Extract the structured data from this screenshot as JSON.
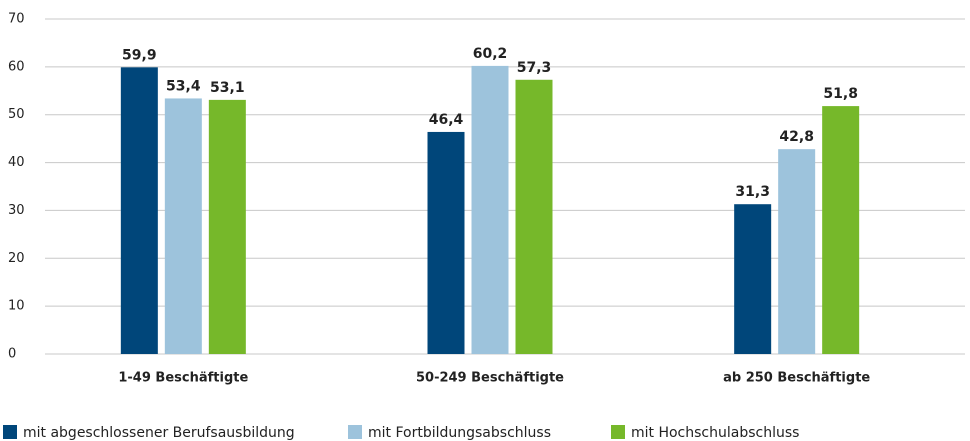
{
  "chart_data": {
    "type": "bar",
    "categories": [
      "1-49 Beschäftigte",
      "50-249 Beschäftigte",
      "ab 250 Beschäftigte"
    ],
    "series": [
      {
        "name": "mit abgeschlossener Berufsausbildung",
        "color": "#00467a",
        "values": [
          59.9,
          46.4,
          31.3
        ],
        "value_labels": [
          "59,9",
          "46,4",
          "31,3"
        ]
      },
      {
        "name": "mit Fortbildungsabschluss",
        "color": "#9dc3dc",
        "values": [
          53.4,
          60.2,
          42.8
        ],
        "value_labels": [
          "53,4",
          "60,2",
          "42,8"
        ]
      },
      {
        "name": "mit Hochschulabschluss",
        "color": "#76b82a",
        "values": [
          53.1,
          57.3,
          51.8
        ],
        "value_labels": [
          "53,1",
          "57,3",
          "51,8"
        ]
      }
    ],
    "ylim": [
      0,
      70
    ],
    "yticks": [
      0,
      10,
      20,
      30,
      40,
      50,
      60,
      70
    ],
    "grid": true,
    "legend": "bottom"
  }
}
